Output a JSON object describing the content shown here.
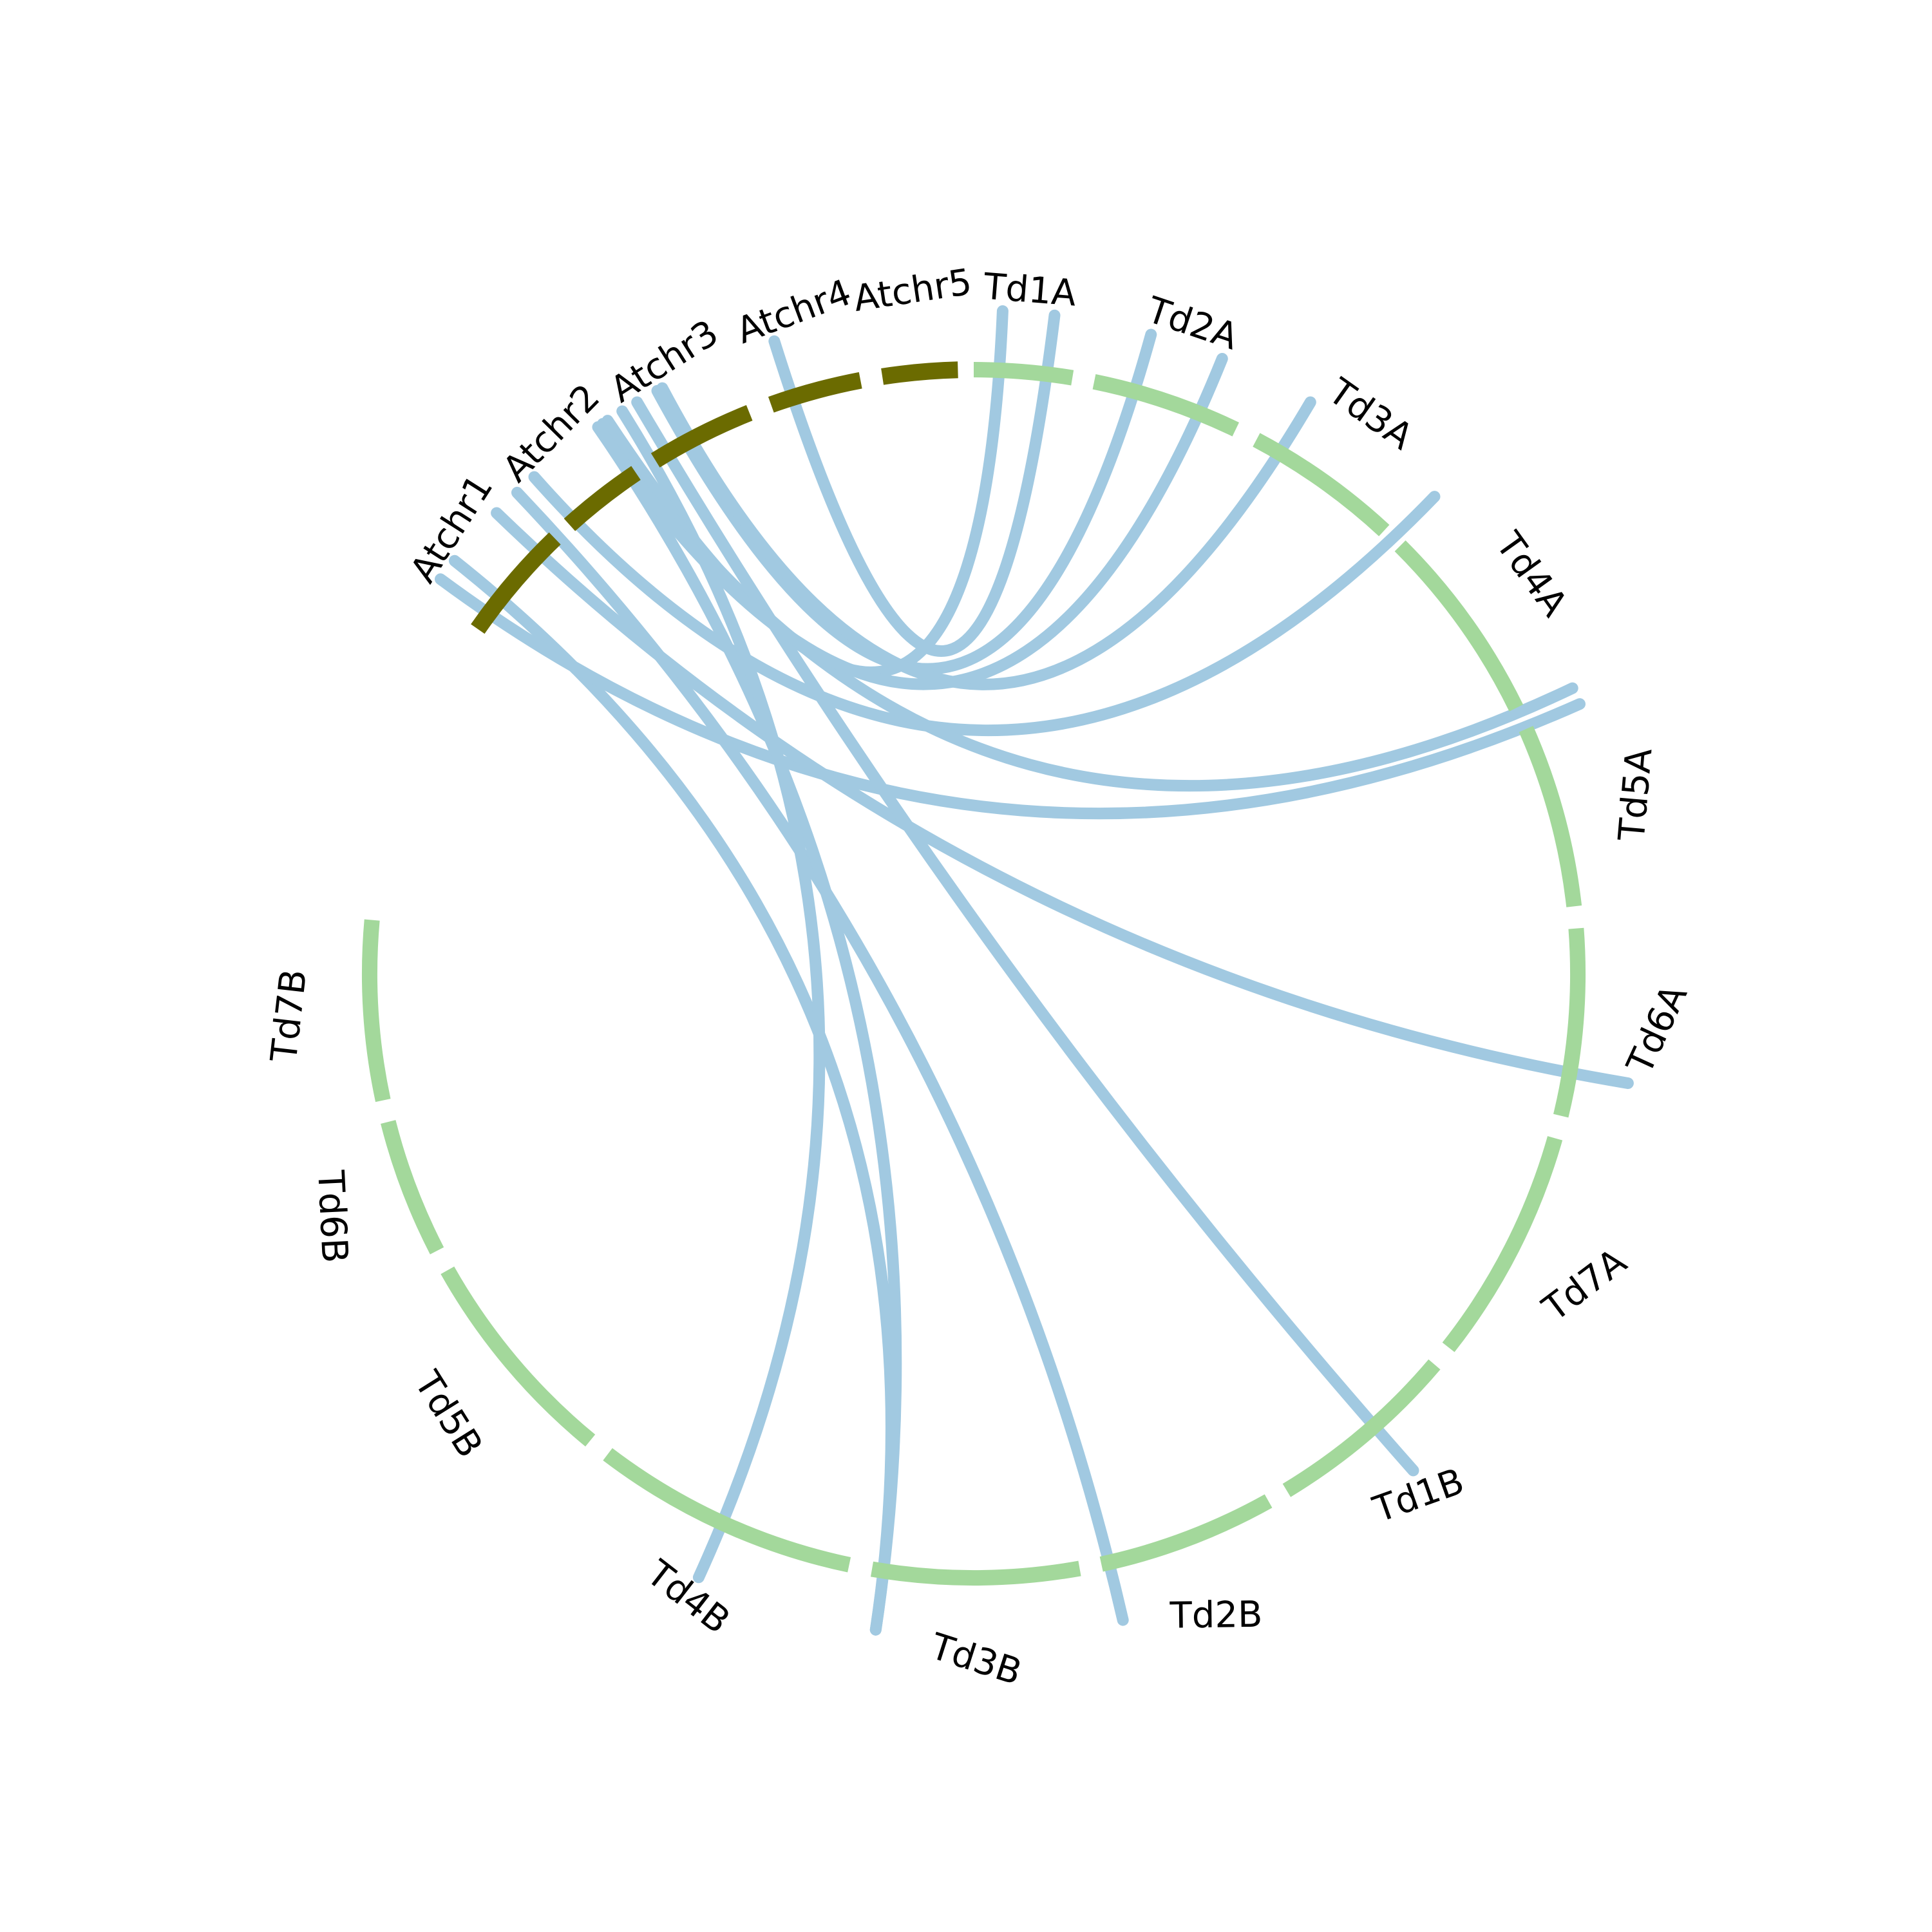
{
  "diagram": {
    "type": "circos",
    "colors": {
      "athaliana": "#6b6b00",
      "durum": "#a3d89b",
      "links": "#a1c9e1",
      "label": "#000000"
    },
    "chromosomes": [
      {
        "id": "Atchr1",
        "label": "Atchr1",
        "group": "athaliana"
      },
      {
        "id": "Atchr2",
        "label": "Atchr2",
        "group": "athaliana"
      },
      {
        "id": "Atchr3",
        "label": "Atchr3",
        "group": "athaliana"
      },
      {
        "id": "Atchr4",
        "label": "Atchr4",
        "group": "athaliana"
      },
      {
        "id": "Atchr5",
        "label": "Atchr5",
        "group": "athaliana"
      },
      {
        "id": "Td1A",
        "label": "Td1A",
        "group": "durum"
      },
      {
        "id": "Td2A",
        "label": "Td2A",
        "group": "durum"
      },
      {
        "id": "Td3A",
        "label": "Td3A",
        "group": "durum"
      },
      {
        "id": "Td4A",
        "label": "Td4A",
        "group": "durum"
      },
      {
        "id": "Td5A",
        "label": "Td5A",
        "group": "durum"
      },
      {
        "id": "Td6A",
        "label": "Td6A",
        "group": "durum"
      },
      {
        "id": "Td7A",
        "label": "Td7A",
        "group": "durum"
      },
      {
        "id": "Td1B",
        "label": "Td1B",
        "group": "durum"
      },
      {
        "id": "Td2B",
        "label": "Td2B",
        "group": "durum"
      },
      {
        "id": "Td3B",
        "label": "Td3B",
        "group": "durum"
      },
      {
        "id": "Td4B",
        "label": "Td4B",
        "group": "durum"
      },
      {
        "id": "Td5B",
        "label": "Td5B",
        "group": "durum"
      },
      {
        "id": "Td6B",
        "label": "Td6B",
        "group": "durum"
      },
      {
        "id": "Td7B",
        "label": "Td7B",
        "group": "durum"
      }
    ],
    "links": [
      {
        "from": "Atchr1",
        "to": "Td3B"
      },
      {
        "from": "Atchr1",
        "to": "Td4A"
      },
      {
        "from": "Atchr2",
        "to": "Td2B"
      },
      {
        "from": "Atchr2",
        "to": "Td3A"
      },
      {
        "from": "Atchr2",
        "to": "Td6A"
      },
      {
        "from": "Atchr3",
        "to": "Td3B"
      },
      {
        "from": "Atchr3",
        "to": "Td4B"
      },
      {
        "from": "Atchr3",
        "to": "Td1A"
      },
      {
        "from": "Atchr3",
        "to": "Td2A"
      },
      {
        "from": "Atchr3",
        "to": "Td1B"
      },
      {
        "from": "Atchr3",
        "to": "Td3A"
      },
      {
        "from": "Atchr3",
        "to": "Td4A"
      },
      {
        "from": "Atchr4",
        "to": "Td1A"
      },
      {
        "from": "Atchr4",
        "to": "Td2A"
      }
    ]
  }
}
